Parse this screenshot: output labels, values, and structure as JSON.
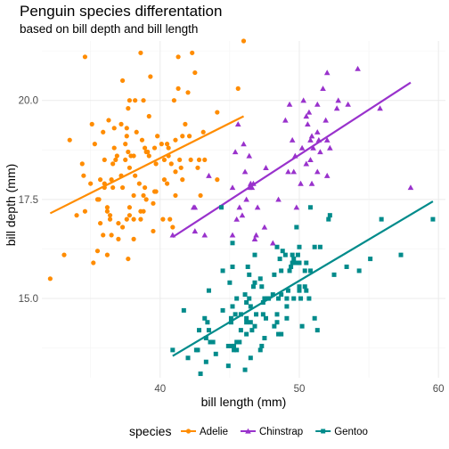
{
  "chart_data": {
    "type": "scatter",
    "title": "Penguin species differentation",
    "subtitle": "based on bill depth and bill length",
    "xlabel": "bill length (mm)",
    "ylabel": "bill depth (mm)",
    "xlim": [
      31.5,
      60.5
    ],
    "ylim": [
      13.0,
      21.5
    ],
    "x_ticks": [
      40,
      50,
      60
    ],
    "y_ticks": [
      15.0,
      17.5,
      20.0
    ],
    "y_tick_labels": [
      "15.0",
      "17.5",
      "20.0"
    ],
    "grid": true,
    "legend": {
      "title": "species",
      "position": "bottom"
    },
    "series": [
      {
        "name": "Adelie",
        "color": "#ff8c00",
        "marker": "circle",
        "trend": [
          [
            32.1,
            17.15
          ],
          [
            46.0,
            19.6
          ]
        ],
        "points": [
          [
            32.1,
            15.5
          ],
          [
            33.1,
            16.1
          ],
          [
            33.5,
            19.0
          ],
          [
            34.0,
            17.1
          ],
          [
            34.4,
            18.4
          ],
          [
            34.5,
            18.1
          ],
          [
            34.6,
            21.1
          ],
          [
            34.6,
            17.2
          ],
          [
            35.0,
            17.9
          ],
          [
            35.1,
            19.4
          ],
          [
            35.2,
            15.9
          ],
          [
            35.3,
            18.9
          ],
          [
            35.5,
            17.5
          ],
          [
            35.5,
            16.2
          ],
          [
            35.6,
            17.5
          ],
          [
            35.7,
            16.9
          ],
          [
            35.7,
            18.0
          ],
          [
            35.9,
            19.2
          ],
          [
            35.9,
            16.6
          ],
          [
            36.0,
            17.9
          ],
          [
            36.0,
            18.5
          ],
          [
            36.0,
            17.8
          ],
          [
            36.2,
            16.1
          ],
          [
            36.2,
            17.2
          ],
          [
            36.2,
            17.3
          ],
          [
            36.3,
            19.5
          ],
          [
            36.4,
            17.0
          ],
          [
            36.4,
            17.1
          ],
          [
            36.5,
            18.0
          ],
          [
            36.5,
            16.6
          ],
          [
            36.6,
            17.8
          ],
          [
            36.6,
            18.4
          ],
          [
            36.7,
            19.3
          ],
          [
            36.7,
            18.8
          ],
          [
            36.8,
            18.5
          ],
          [
            36.9,
            18.6
          ],
          [
            37.0,
            16.9
          ],
          [
            37.0,
            16.5
          ],
          [
            37.2,
            18.1
          ],
          [
            37.2,
            19.4
          ],
          [
            37.3,
            20.5
          ],
          [
            37.3,
            16.8
          ],
          [
            37.3,
            17.8
          ],
          [
            37.5,
            18.9
          ],
          [
            37.5,
            18.5
          ],
          [
            37.6,
            19.1
          ],
          [
            37.6,
            17.0
          ],
          [
            37.6,
            19.3
          ],
          [
            37.7,
            18.7
          ],
          [
            37.7,
            16.0
          ],
          [
            37.7,
            19.8
          ],
          [
            37.8,
            17.1
          ],
          [
            37.8,
            17.3
          ],
          [
            37.8,
            18.3
          ],
          [
            37.8,
            20.0
          ],
          [
            37.9,
            18.6
          ],
          [
            38.1,
            18.6
          ],
          [
            38.1,
            17.6
          ],
          [
            38.1,
            17.0
          ],
          [
            38.1,
            16.5
          ],
          [
            38.2,
            18.1
          ],
          [
            38.2,
            20.0
          ],
          [
            38.3,
            19.2
          ],
          [
            38.5,
            17.9
          ],
          [
            38.6,
            21.2
          ],
          [
            38.6,
            17.2
          ],
          [
            38.6,
            17.0
          ],
          [
            38.7,
            19.0
          ],
          [
            38.8,
            17.2
          ],
          [
            38.8,
            20.0
          ],
          [
            38.8,
            17.6
          ],
          [
            38.9,
            18.8
          ],
          [
            38.9,
            17.8
          ],
          [
            39.0,
            17.5
          ],
          [
            39.0,
            18.7
          ],
          [
            39.1,
            18.7
          ],
          [
            39.2,
            19.6
          ],
          [
            39.2,
            18.6
          ],
          [
            39.3,
            20.6
          ],
          [
            39.5,
            17.4
          ],
          [
            39.5,
            16.7
          ],
          [
            39.6,
            17.7
          ],
          [
            39.6,
            18.8
          ],
          [
            39.7,
            18.4
          ],
          [
            39.7,
            17.7
          ],
          [
            39.8,
            19.1
          ],
          [
            40.1,
            18.9
          ],
          [
            40.2,
            17.0
          ],
          [
            40.3,
            18.0
          ],
          [
            40.3,
            18.5
          ],
          [
            40.5,
            17.9
          ],
          [
            40.5,
            18.9
          ],
          [
            40.6,
            18.6
          ],
          [
            40.6,
            18.8
          ],
          [
            40.7,
            17.0
          ],
          [
            40.8,
            18.4
          ],
          [
            40.9,
            16.8
          ],
          [
            41.0,
            20.0
          ],
          [
            41.1,
            17.6
          ],
          [
            41.1,
            19.0
          ],
          [
            41.1,
            18.2
          ],
          [
            41.3,
            20.3
          ],
          [
            41.3,
            21.1
          ],
          [
            41.4,
            18.5
          ],
          [
            41.5,
            18.3
          ],
          [
            41.6,
            18.0
          ],
          [
            41.6,
            19.1
          ],
          [
            41.8,
            19.4
          ],
          [
            42.0,
            20.2
          ],
          [
            42.1,
            19.1
          ],
          [
            42.2,
            18.5
          ],
          [
            42.3,
            21.2
          ],
          [
            42.5,
            20.7
          ],
          [
            42.7,
            18.3
          ],
          [
            42.8,
            18.5
          ],
          [
            42.9,
            17.6
          ],
          [
            43.1,
            19.2
          ],
          [
            43.2,
            18.5
          ],
          [
            44.1,
            19.7
          ],
          [
            44.1,
            18.0
          ],
          [
            45.6,
            20.3
          ],
          [
            46.0,
            21.5
          ]
        ]
      },
      {
        "name": "Chinstrap",
        "color": "#9932cc",
        "marker": "triangle",
        "trend": [
          [
            40.9,
            16.55
          ],
          [
            58.0,
            20.45
          ]
        ],
        "points": [
          [
            40.9,
            16.6
          ],
          [
            42.4,
            17.3
          ],
          [
            42.5,
            16.7
          ],
          [
            42.5,
            17.3
          ],
          [
            43.2,
            16.6
          ],
          [
            43.5,
            18.1
          ],
          [
            45.2,
            17.8
          ],
          [
            45.2,
            16.6
          ],
          [
            45.4,
            18.7
          ],
          [
            45.5,
            17.0
          ],
          [
            45.6,
            19.4
          ],
          [
            45.7,
            17.3
          ],
          [
            45.9,
            17.1
          ],
          [
            46.0,
            18.9
          ],
          [
            46.1,
            18.2
          ],
          [
            46.2,
            17.5
          ],
          [
            46.4,
            18.6
          ],
          [
            46.4,
            17.8
          ],
          [
            46.5,
            17.9
          ],
          [
            46.6,
            17.8
          ],
          [
            46.7,
            17.9
          ],
          [
            46.8,
            16.5
          ],
          [
            46.9,
            16.6
          ],
          [
            47.0,
            17.3
          ],
          [
            47.5,
            16.8
          ],
          [
            47.6,
            18.3
          ],
          [
            48.1,
            16.4
          ],
          [
            48.5,
            17.5
          ],
          [
            49.0,
            19.5
          ],
          [
            49.2,
            18.2
          ],
          [
            49.3,
            19.9
          ],
          [
            49.5,
            19.0
          ],
          [
            49.6,
            18.2
          ],
          [
            49.7,
            18.6
          ],
          [
            49.8,
            17.3
          ],
          [
            50.1,
            17.9
          ],
          [
            50.2,
            18.8
          ],
          [
            50.3,
            20.0
          ],
          [
            50.5,
            18.4
          ],
          [
            50.5,
            19.6
          ],
          [
            50.6,
            19.4
          ],
          [
            50.7,
            19.7
          ],
          [
            50.8,
            18.5
          ],
          [
            50.8,
            19.0
          ],
          [
            50.9,
            17.9
          ],
          [
            50.9,
            19.1
          ],
          [
            51.0,
            18.8
          ],
          [
            51.3,
            18.2
          ],
          [
            51.3,
            19.9
          ],
          [
            51.3,
            19.2
          ],
          [
            51.4,
            19.0
          ],
          [
            51.5,
            18.7
          ],
          [
            51.7,
            20.3
          ],
          [
            51.9,
            19.5
          ],
          [
            52.0,
            18.1
          ],
          [
            52.0,
            19.0
          ],
          [
            52.0,
            20.7
          ],
          [
            52.2,
            18.8
          ],
          [
            52.7,
            19.8
          ],
          [
            52.8,
            20.0
          ],
          [
            53.5,
            19.9
          ],
          [
            54.2,
            20.8
          ],
          [
            55.8,
            19.8
          ],
          [
            58.0,
            17.8
          ]
        ]
      },
      {
        "name": "Gentoo",
        "color": "#008b8b",
        "marker": "square",
        "trend": [
          [
            40.9,
            13.55
          ],
          [
            59.6,
            17.45
          ]
        ],
        "points": [
          [
            40.9,
            13.7
          ],
          [
            41.7,
            14.7
          ],
          [
            42.0,
            13.5
          ],
          [
            42.6,
            13.7
          ],
          [
            42.7,
            13.7
          ],
          [
            42.8,
            14.2
          ],
          [
            42.9,
            13.1
          ],
          [
            43.2,
            14.5
          ],
          [
            43.3,
            13.4
          ],
          [
            43.3,
            14.0
          ],
          [
            43.4,
            14.4
          ],
          [
            43.5,
            14.2
          ],
          [
            43.5,
            15.2
          ],
          [
            43.6,
            13.9
          ],
          [
            43.8,
            13.9
          ],
          [
            44.0,
            13.6
          ],
          [
            44.4,
            17.3
          ],
          [
            44.5,
            14.7
          ],
          [
            44.5,
            15.7
          ],
          [
            44.9,
            13.8
          ],
          [
            44.9,
            13.3
          ],
          [
            45.0,
            15.4
          ],
          [
            45.1,
            14.5
          ],
          [
            45.1,
            14.4
          ],
          [
            45.2,
            13.8
          ],
          [
            45.2,
            14.8
          ],
          [
            45.2,
            15.8
          ],
          [
            45.2,
            16.4
          ],
          [
            45.3,
            13.7
          ],
          [
            45.3,
            13.8
          ],
          [
            45.4,
            14.6
          ],
          [
            45.5,
            13.7
          ],
          [
            45.5,
            13.9
          ],
          [
            45.5,
            15.0
          ],
          [
            45.7,
            13.9
          ],
          [
            45.8,
            14.2
          ],
          [
            45.8,
            14.6
          ],
          [
            46.1,
            13.2
          ],
          [
            46.1,
            15.1
          ],
          [
            46.2,
            14.1
          ],
          [
            46.2,
            14.4
          ],
          [
            46.2,
            14.5
          ],
          [
            46.2,
            14.9
          ],
          [
            46.3,
            15.8
          ],
          [
            46.4,
            15.0
          ],
          [
            46.4,
            15.6
          ],
          [
            46.5,
            13.5
          ],
          [
            46.5,
            14.4
          ],
          [
            46.5,
            14.8
          ],
          [
            46.6,
            14.2
          ],
          [
            46.7,
            15.3
          ],
          [
            46.8,
            14.3
          ],
          [
            46.8,
            15.4
          ],
          [
            46.8,
            16.1
          ],
          [
            46.9,
            14.6
          ],
          [
            47.2,
            13.7
          ],
          [
            47.2,
            15.5
          ],
          [
            47.3,
            13.8
          ],
          [
            47.3,
            15.3
          ],
          [
            47.4,
            14.6
          ],
          [
            47.4,
            14.9
          ],
          [
            47.5,
            14.0
          ],
          [
            47.5,
            15.0
          ],
          [
            47.6,
            14.5
          ],
          [
            47.7,
            15.0
          ],
          [
            47.8,
            15.0
          ],
          [
            48.1,
            15.1
          ],
          [
            48.2,
            14.3
          ],
          [
            48.2,
            15.6
          ],
          [
            48.4,
            14.4
          ],
          [
            48.4,
            14.6
          ],
          [
            48.4,
            16.3
          ],
          [
            48.5,
            14.1
          ],
          [
            48.5,
            15.0
          ],
          [
            48.6,
            16.0
          ],
          [
            48.7,
            14.1
          ],
          [
            48.7,
            15.1
          ],
          [
            48.7,
            15.7
          ],
          [
            48.8,
            16.2
          ],
          [
            49.0,
            16.1
          ],
          [
            49.1,
            14.5
          ],
          [
            49.1,
            14.8
          ],
          [
            49.1,
            15.0
          ],
          [
            49.2,
            15.2
          ],
          [
            49.3,
            15.7
          ],
          [
            49.4,
            15.8
          ],
          [
            49.5,
            15.9
          ],
          [
            49.5,
            16.1
          ],
          [
            49.6,
            15.0
          ],
          [
            49.6,
            16.0
          ],
          [
            49.8,
            15.9
          ],
          [
            49.8,
            16.8
          ],
          [
            49.9,
            16.1
          ],
          [
            50.0,
            15.2
          ],
          [
            50.0,
            15.3
          ],
          [
            50.0,
            15.9
          ],
          [
            50.0,
            16.3
          ],
          [
            50.1,
            15.0
          ],
          [
            50.2,
            14.3
          ],
          [
            50.4,
            15.3
          ],
          [
            50.4,
            15.7
          ],
          [
            50.5,
            15.2
          ],
          [
            50.5,
            15.9
          ],
          [
            50.7,
            15.0
          ],
          [
            50.8,
            15.7
          ],
          [
            50.8,
            17.3
          ],
          [
            51.1,
            14.5
          ],
          [
            51.1,
            16.3
          ],
          [
            51.3,
            14.2
          ],
          [
            51.5,
            16.3
          ],
          [
            52.1,
            17.0
          ],
          [
            52.2,
            17.1
          ],
          [
            52.5,
            15.6
          ],
          [
            53.4,
            15.8
          ],
          [
            54.3,
            15.7
          ],
          [
            55.1,
            16.0
          ],
          [
            55.9,
            17.0
          ],
          [
            57.3,
            16.1
          ],
          [
            59.6,
            17.0
          ]
        ]
      }
    ]
  }
}
